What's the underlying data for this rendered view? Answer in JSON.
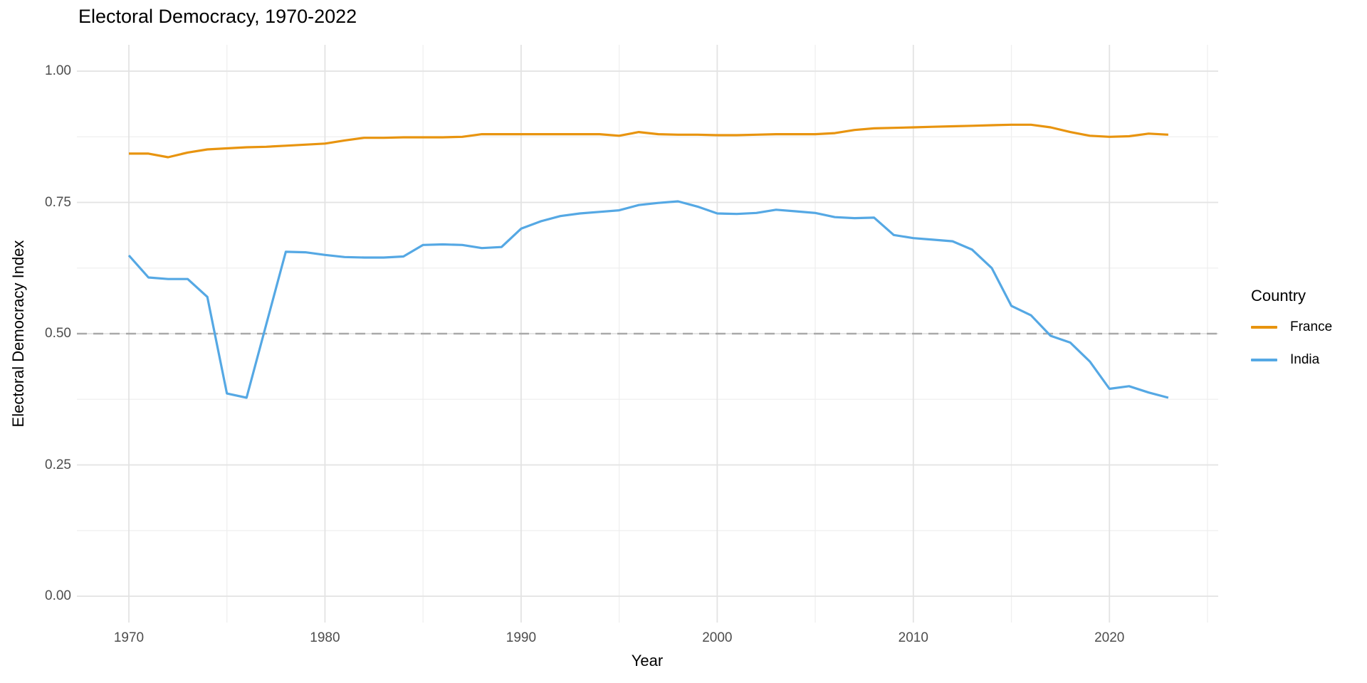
{
  "chart_data": {
    "type": "line",
    "title": "Electoral Democracy, 1970-2022",
    "xlabel": "Year",
    "ylabel": "Electoral Democracy Index",
    "xlim": [
      1967.4,
      2025.7
    ],
    "ylim": [
      -0.05,
      1.05
    ],
    "x_ticks": [
      1970,
      1980,
      1990,
      2000,
      2010,
      2020
    ],
    "x_minor_ticks": [
      1975,
      1985,
      1995,
      2005,
      2015,
      2025
    ],
    "y_ticks": [
      0.0,
      0.25,
      0.5,
      0.75,
      1.0
    ],
    "y_minor_ticks": [
      0.125,
      0.375,
      0.625,
      0.875
    ],
    "y_tick_labels": [
      "0.00",
      "0.25",
      "0.50",
      "0.75",
      "1.00"
    ],
    "grid": "major and minor, light gray on white",
    "legend": {
      "title": "Country",
      "position": "right"
    },
    "reference_line": {
      "y": 0.5,
      "style": "dashed",
      "color": "#a9a9a9"
    },
    "colors": {
      "major_grid": "#e3e3e3",
      "minor_grid": "#efefef",
      "axis_text": "#4d4d4d"
    },
    "years": [
      1970,
      1971,
      1972,
      1973,
      1974,
      1975,
      1976,
      1977,
      1978,
      1979,
      1980,
      1981,
      1982,
      1983,
      1984,
      1985,
      1986,
      1987,
      1988,
      1989,
      1990,
      1991,
      1992,
      1993,
      1994,
      1995,
      1996,
      1997,
      1998,
      1999,
      2000,
      2001,
      2002,
      2003,
      2004,
      2005,
      2006,
      2007,
      2008,
      2009,
      2010,
      2011,
      2012,
      2013,
      2014,
      2015,
      2016,
      2017,
      2018,
      2019,
      2020,
      2021,
      2022,
      2023
    ],
    "series": [
      {
        "name": "France",
        "color": "#e8940f",
        "values": [
          0.843,
          0.843,
          0.836,
          0.845,
          0.851,
          0.853,
          0.855,
          0.856,
          0.858,
          0.86,
          0.862,
          0.868,
          0.873,
          0.873,
          0.874,
          0.874,
          0.874,
          0.875,
          0.88,
          0.88,
          0.88,
          0.88,
          0.88,
          0.88,
          0.88,
          0.877,
          0.884,
          0.88,
          0.879,
          0.879,
          0.878,
          0.878,
          0.879,
          0.88,
          0.88,
          0.88,
          0.882,
          0.888,
          0.891,
          0.892,
          0.893,
          0.894,
          0.895,
          0.896,
          0.897,
          0.898,
          0.898,
          0.893,
          0.884,
          0.877,
          0.875,
          0.876,
          0.881,
          0.879
        ]
      },
      {
        "name": "India",
        "color": "#55a8e4",
        "values": [
          0.649,
          0.607,
          0.604,
          0.604,
          0.57,
          0.386,
          0.378,
          0.517,
          0.656,
          0.655,
          0.65,
          0.646,
          0.645,
          0.645,
          0.647,
          0.669,
          0.67,
          0.669,
          0.663,
          0.665,
          0.7,
          0.714,
          0.724,
          0.729,
          0.732,
          0.735,
          0.745,
          0.749,
          0.752,
          0.742,
          0.729,
          0.728,
          0.73,
          0.736,
          0.733,
          0.73,
          0.722,
          0.72,
          0.721,
          0.688,
          0.682,
          0.679,
          0.676,
          0.66,
          0.625,
          0.553,
          0.535,
          0.496,
          0.483,
          0.447,
          0.395,
          0.4,
          0.388,
          0.378
        ]
      }
    ]
  }
}
